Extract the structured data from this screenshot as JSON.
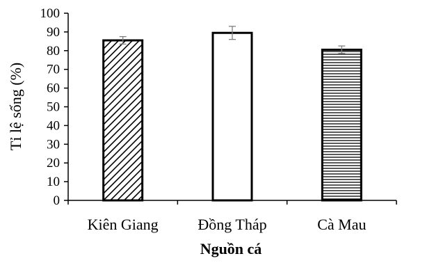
{
  "chart_data": {
    "type": "bar",
    "title": "",
    "xlabel": "Nguồn cá",
    "ylabel": "Tỉ lệ sống (%)",
    "categories": [
      "Kiên Giang",
      "Đồng Tháp",
      "Cà Mau"
    ],
    "values": [
      85.5,
      89.5,
      80.5
    ],
    "errors": [
      2.0,
      3.5,
      2.0
    ],
    "ylim": [
      0,
      100
    ],
    "yticks": [
      0,
      10,
      20,
      30,
      40,
      50,
      60,
      70,
      80,
      90,
      100
    ],
    "grid": false,
    "legend": "none",
    "fill_patterns": [
      "diagonal-hatch",
      "none",
      "horizontal-lines"
    ],
    "colors": {
      "bar_outline": "#000000",
      "bar_fill": "#ffffff",
      "error_bar": "#7f7f7f",
      "axis": "#000000"
    }
  }
}
